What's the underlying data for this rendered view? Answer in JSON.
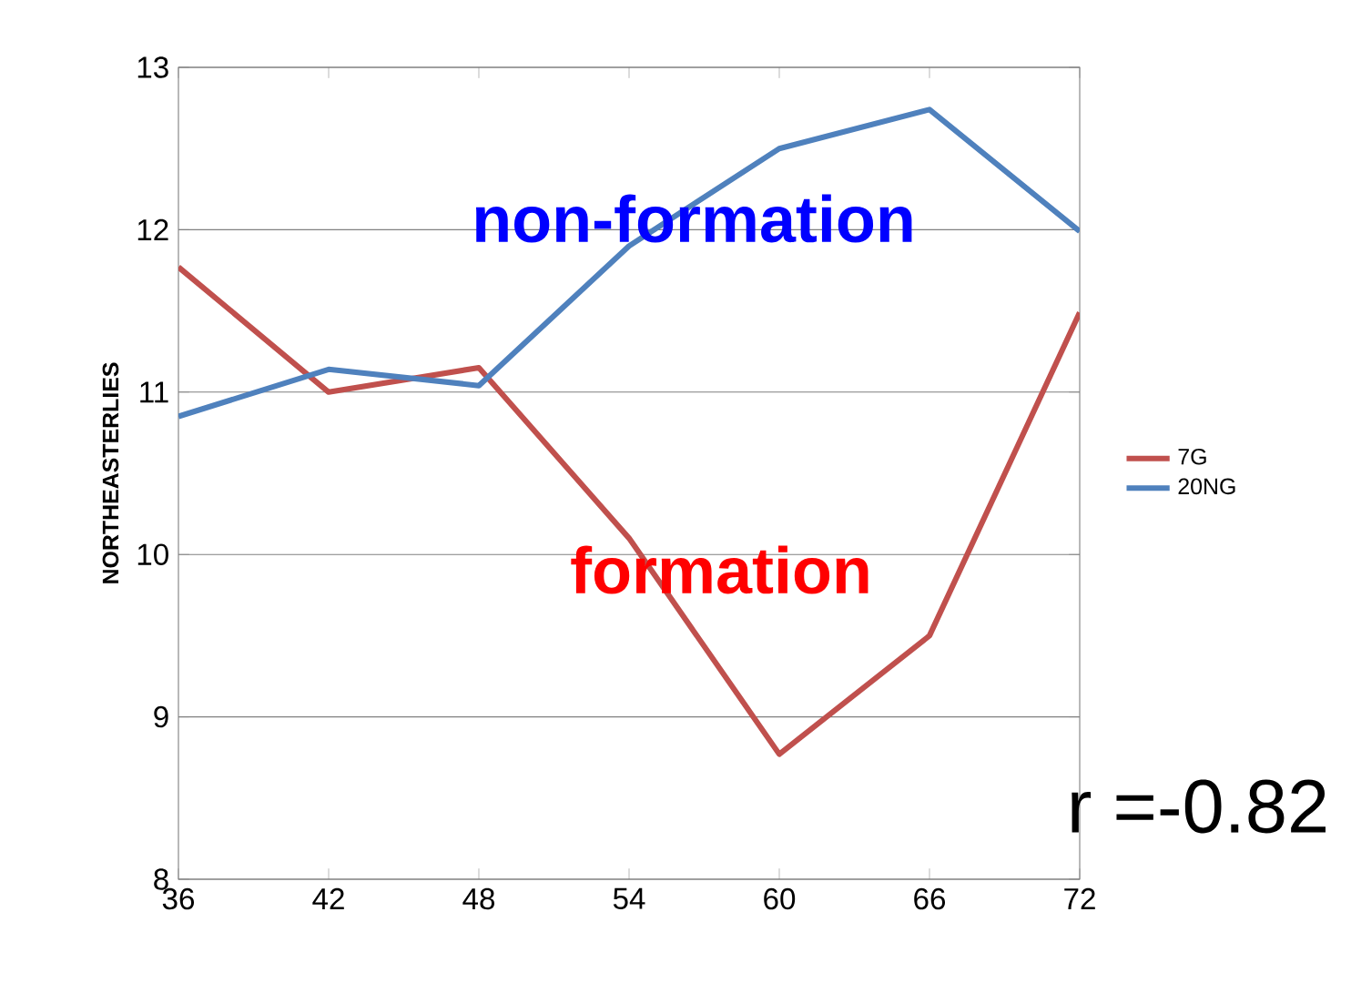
{
  "chart_data": {
    "type": "line",
    "ylabel": "NORTHEASTERLIES",
    "x": [
      36,
      42,
      48,
      54,
      60,
      66,
      72
    ],
    "series": [
      {
        "name": "7G",
        "color": "#c0504d",
        "values": [
          11.77,
          11.0,
          11.15,
          10.1,
          8.77,
          9.5,
          11.49
        ]
      },
      {
        "name": "20NG",
        "color": "#4f81bd",
        "values": [
          10.85,
          11.14,
          11.04,
          11.9,
          12.5,
          12.74,
          11.99
        ]
      }
    ],
    "xlim": [
      36,
      72
    ],
    "xticks": [
      36,
      42,
      48,
      54,
      60,
      66,
      72
    ],
    "ylim": [
      8,
      13
    ],
    "yticks": [
      8,
      9,
      10,
      11,
      12,
      13
    ],
    "grid": "y",
    "legend": "right",
    "annotations": [
      "non-formation",
      "formation",
      "r =-0.82"
    ]
  }
}
